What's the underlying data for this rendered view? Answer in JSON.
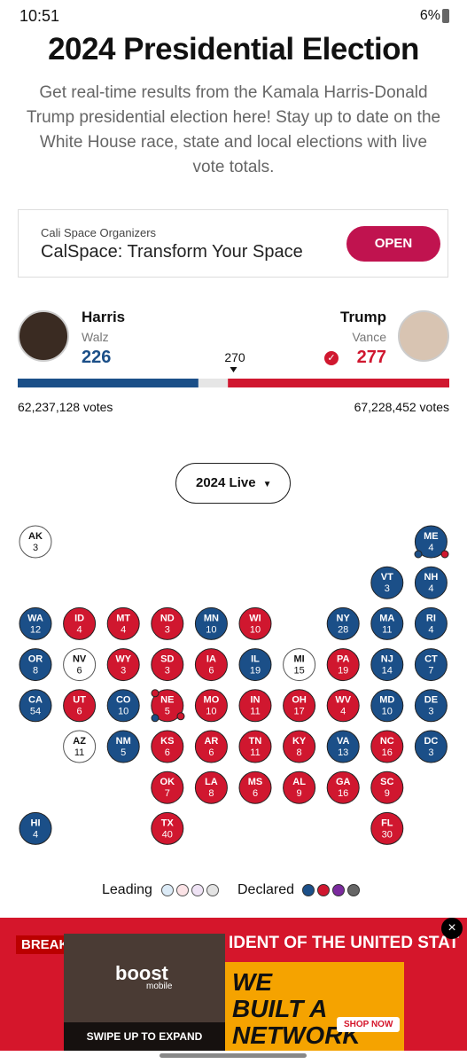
{
  "status_bar": {
    "time": "10:51",
    "battery": "6%"
  },
  "header": {
    "title": "2024 Presidential Election",
    "description": "Get real-time results from the Kamala Harris-Donald Trump presidential election here! Stay up to date on the White House race, state and local elections with live vote totals."
  },
  "ad": {
    "sponsor": "Cali Space Organizers",
    "headline": "CalSpace: Transform Your Space",
    "button": "OPEN"
  },
  "race": {
    "threshold": 270,
    "harris": {
      "name": "Harris",
      "running_mate": "Walz",
      "electoral_votes": 226,
      "popular_votes": "62,237,128 votes",
      "color": "#1b4f88"
    },
    "trump": {
      "name": "Trump",
      "running_mate": "Vance",
      "electoral_votes": 277,
      "popular_votes": "67,228,452 votes",
      "color": "#d0172f"
    }
  },
  "dropdown": "2024 Live",
  "map": {
    "states": [
      {
        "code": "AK",
        "votes": 3,
        "color": "#ffffff"
      },
      {
        "code": "ME",
        "votes": 4,
        "color": "#1b4f88"
      },
      {
        "code": "VT",
        "votes": 3,
        "color": "#1b4f88"
      },
      {
        "code": "NH",
        "votes": 4,
        "color": "#1b4f88"
      },
      {
        "code": "WA",
        "votes": 12,
        "color": "#1b4f88"
      },
      {
        "code": "ID",
        "votes": 4,
        "color": "#d0172f"
      },
      {
        "code": "MT",
        "votes": 4,
        "color": "#d0172f"
      },
      {
        "code": "ND",
        "votes": 3,
        "color": "#d0172f"
      },
      {
        "code": "MN",
        "votes": 10,
        "color": "#1b4f88"
      },
      {
        "code": "WI",
        "votes": 10,
        "color": "#d0172f"
      },
      {
        "code": "NY",
        "votes": 28,
        "color": "#1b4f88"
      },
      {
        "code": "MA",
        "votes": 11,
        "color": "#1b4f88"
      },
      {
        "code": "RI",
        "votes": 4,
        "color": "#1b4f88"
      },
      {
        "code": "OR",
        "votes": 8,
        "color": "#1b4f88"
      },
      {
        "code": "NV",
        "votes": 6,
        "color": "#ffffff"
      },
      {
        "code": "WY",
        "votes": 3,
        "color": "#d0172f"
      },
      {
        "code": "SD",
        "votes": 3,
        "color": "#d0172f"
      },
      {
        "code": "IA",
        "votes": 6,
        "color": "#d0172f"
      },
      {
        "code": "IL",
        "votes": 19,
        "color": "#1b4f88"
      },
      {
        "code": "MI",
        "votes": 15,
        "color": "#ffffff"
      },
      {
        "code": "PA",
        "votes": 19,
        "color": "#d0172f"
      },
      {
        "code": "NJ",
        "votes": 14,
        "color": "#1b4f88"
      },
      {
        "code": "CT",
        "votes": 7,
        "color": "#1b4f88"
      },
      {
        "code": "CA",
        "votes": 54,
        "color": "#1b4f88"
      },
      {
        "code": "UT",
        "votes": 6,
        "color": "#d0172f"
      },
      {
        "code": "CO",
        "votes": 10,
        "color": "#1b4f88"
      },
      {
        "code": "NE",
        "votes": 5,
        "color": "#d0172f"
      },
      {
        "code": "MO",
        "votes": 10,
        "color": "#d0172f"
      },
      {
        "code": "IN",
        "votes": 11,
        "color": "#d0172f"
      },
      {
        "code": "OH",
        "votes": 17,
        "color": "#d0172f"
      },
      {
        "code": "WV",
        "votes": 4,
        "color": "#d0172f"
      },
      {
        "code": "MD",
        "votes": 10,
        "color": "#1b4f88"
      },
      {
        "code": "DE",
        "votes": 3,
        "color": "#1b4f88"
      },
      {
        "code": "AZ",
        "votes": 11,
        "color": "#ffffff"
      },
      {
        "code": "NM",
        "votes": 5,
        "color": "#1b4f88"
      },
      {
        "code": "KS",
        "votes": 6,
        "color": "#d0172f"
      },
      {
        "code": "AR",
        "votes": 6,
        "color": "#d0172f"
      },
      {
        "code": "TN",
        "votes": 11,
        "color": "#d0172f"
      },
      {
        "code": "KY",
        "votes": 8,
        "color": "#d0172f"
      },
      {
        "code": "VA",
        "votes": 13,
        "color": "#1b4f88"
      },
      {
        "code": "NC",
        "votes": 16,
        "color": "#d0172f"
      },
      {
        "code": "DC",
        "votes": 3,
        "color": "#1b4f88"
      },
      {
        "code": "OK",
        "votes": 7,
        "color": "#d0172f"
      },
      {
        "code": "LA",
        "votes": 8,
        "color": "#d0172f"
      },
      {
        "code": "MS",
        "votes": 6,
        "color": "#d0172f"
      },
      {
        "code": "AL",
        "votes": 9,
        "color": "#d0172f"
      },
      {
        "code": "GA",
        "votes": 16,
        "color": "#d0172f"
      },
      {
        "code": "SC",
        "votes": 9,
        "color": "#d0172f"
      },
      {
        "code": "HI",
        "votes": 4,
        "color": "#1b4f88"
      },
      {
        "code": "TX",
        "votes": 40,
        "color": "#d0172f"
      },
      {
        "code": "FL",
        "votes": 30,
        "color": "#d0172f"
      }
    ]
  },
  "legend": {
    "leading_label": "Leading",
    "leading_colors": [
      "#dcebf7",
      "#fbe3e6",
      "#efe3f5",
      "#e3e3e3"
    ],
    "declared_label": "Declared",
    "declared_colors": [
      "#1b4f88",
      "#d0172f",
      "#7b2a9e",
      "#666666"
    ]
  },
  "bottom_ad": {
    "banner_left": "BREAK",
    "banner_right": "IDENT OF THE UNITED STAT",
    "brand": "boost",
    "brand_sub": "mobile",
    "slogan": "WE BUILT A NETWORK",
    "cta": "SHOP NOW",
    "expand": "SWIPE UP TO EXPAND"
  }
}
